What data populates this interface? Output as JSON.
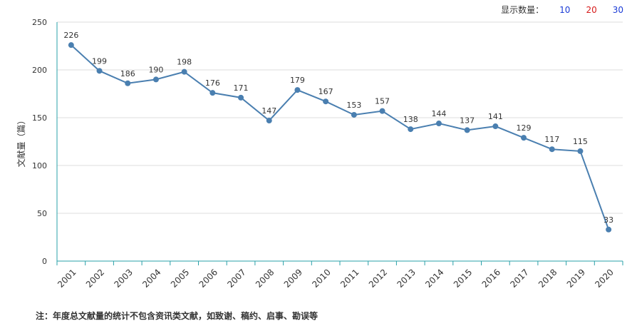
{
  "controls": {
    "display_count_label": "显示数量：",
    "options": [
      {
        "label": "10",
        "color": "#1a3bd6"
      },
      {
        "label": "20",
        "color": "#d61a1a"
      },
      {
        "label": "30",
        "color": "#1a3bd6"
      }
    ]
  },
  "footnote": "注：年度总文献量的统计不包含资讯类文献，如致谢、稿约、启事、勘误等",
  "chart_data": {
    "type": "line",
    "title": "",
    "xlabel": "",
    "ylabel": "文献量（篇）",
    "categories": [
      "2001",
      "2002",
      "2003",
      "2004",
      "2005",
      "2006",
      "2007",
      "2008",
      "2009",
      "2010",
      "2011",
      "2012",
      "2013",
      "2014",
      "2015",
      "2016",
      "2017",
      "2018",
      "2019",
      "2020"
    ],
    "series": [
      {
        "values": [
          226,
          199,
          186,
          190,
          198,
          176,
          171,
          147,
          179,
          167,
          153,
          157,
          138,
          144,
          137,
          141,
          129,
          117,
          115,
          33
        ]
      }
    ],
    "ylim": [
      0,
      250
    ],
    "yticks": [
      0,
      50,
      100,
      150,
      200,
      250
    ],
    "grid": true,
    "line_color": "#4a7fb0",
    "axis_color": "#2aa0a8"
  }
}
